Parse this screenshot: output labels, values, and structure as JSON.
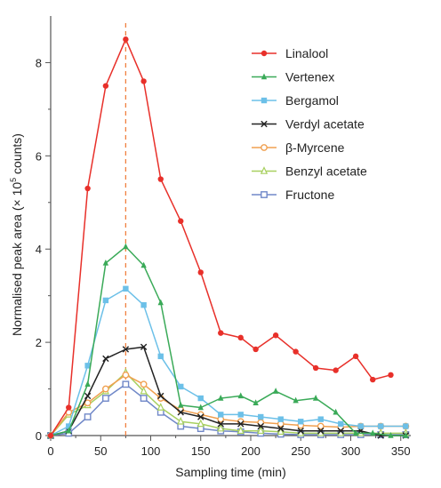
{
  "chart_data": {
    "type": "line",
    "xlabel": "Sampling time (min)",
    "ylabel_parts": [
      "Normalised peak area (× 10",
      "5",
      " counts)"
    ],
    "xlim": [
      0,
      360
    ],
    "ylim": [
      0,
      9
    ],
    "xticks": [
      0,
      50,
      100,
      150,
      200,
      250,
      300,
      350
    ],
    "yticks": [
      0,
      2,
      4,
      6,
      8
    ],
    "x_minor_ticks": [
      25,
      75,
      125,
      175,
      225,
      275,
      325
    ],
    "y_minor_ticks": [
      1,
      3,
      5,
      7
    ],
    "grid": false,
    "legend_position": "top-right",
    "reference_line": {
      "x": 75,
      "color": "#f08040",
      "style": "dashed"
    },
    "series": [
      {
        "name": "Linalool",
        "color": "#e8302a",
        "marker": "circle",
        "x": [
          0,
          18,
          37,
          55,
          75,
          93,
          110,
          130,
          150,
          170,
          190,
          205,
          225,
          245,
          265,
          285,
          305,
          322,
          340
        ],
        "y": [
          0,
          0.6,
          5.3,
          7.5,
          8.5,
          7.6,
          5.5,
          4.6,
          3.5,
          2.2,
          2.1,
          1.85,
          2.15,
          1.8,
          1.45,
          1.4,
          1.7,
          1.2,
          1.3
        ]
      },
      {
        "name": "Vertenex",
        "color": "#3aaa58",
        "marker": "triangle",
        "x": [
          0,
          18,
          37,
          55,
          75,
          93,
          110,
          130,
          150,
          170,
          190,
          205,
          225,
          245,
          265,
          285,
          305,
          322,
          340,
          355
        ],
        "y": [
          0,
          0.1,
          1.1,
          3.7,
          4.05,
          3.65,
          2.85,
          0.65,
          0.6,
          0.8,
          0.85,
          0.7,
          0.95,
          0.75,
          0.8,
          0.5,
          0.05,
          0.05,
          0,
          0
        ]
      },
      {
        "name": "Bergamol",
        "color": "#6cc0e8",
        "marker": "square",
        "x": [
          0,
          18,
          37,
          55,
          75,
          93,
          110,
          130,
          150,
          170,
          190,
          210,
          230,
          250,
          270,
          290,
          310,
          330,
          355
        ],
        "y": [
          0,
          0.2,
          1.5,
          2.9,
          3.15,
          2.8,
          1.7,
          1.05,
          0.8,
          0.45,
          0.45,
          0.4,
          0.35,
          0.3,
          0.35,
          0.25,
          0.2,
          0.2,
          0.2
        ]
      },
      {
        "name": "Verdyl acetate",
        "color": "#222222",
        "marker": "cross",
        "x": [
          0,
          18,
          37,
          55,
          75,
          93,
          110,
          130,
          150,
          170,
          190,
          210,
          230,
          250,
          270,
          290,
          310,
          330,
          355
        ],
        "y": [
          0,
          0.1,
          0.85,
          1.65,
          1.85,
          1.9,
          0.85,
          0.5,
          0.4,
          0.25,
          0.25,
          0.2,
          0.15,
          0.1,
          0.1,
          0.1,
          0.1,
          0,
          0
        ]
      },
      {
        "name": "β-Myrcene",
        "color": "#f0a050",
        "marker": "circle-open",
        "x": [
          0,
          18,
          37,
          55,
          75,
          93,
          110,
          130,
          150,
          170,
          190,
          210,
          230,
          250,
          270,
          290,
          310,
          330,
          355
        ],
        "y": [
          0,
          0.5,
          0.7,
          1.0,
          1.3,
          1.1,
          0.8,
          0.55,
          0.45,
          0.35,
          0.3,
          0.28,
          0.25,
          0.22,
          0.2,
          0.18,
          0.2,
          0.2,
          0.2
        ]
      },
      {
        "name": "Benzyl acetate",
        "color": "#a8d060",
        "marker": "triangle-open",
        "x": [
          0,
          18,
          37,
          55,
          75,
          93,
          110,
          130,
          150,
          170,
          190,
          210,
          230,
          250,
          270,
          290,
          310,
          330,
          355
        ],
        "y": [
          0,
          0.45,
          0.65,
          0.95,
          1.35,
          0.95,
          0.6,
          0.3,
          0.25,
          0.15,
          0.1,
          0.1,
          0.08,
          0.05,
          0.05,
          0.05,
          0.05,
          0.05,
          0.05
        ]
      },
      {
        "name": "Fructone",
        "color": "#7088c8",
        "marker": "square-open",
        "x": [
          0,
          18,
          37,
          55,
          75,
          93,
          110,
          130,
          150,
          170,
          190,
          210,
          230,
          250,
          270,
          290,
          310,
          330,
          355
        ],
        "y": [
          0,
          0.05,
          0.4,
          0.8,
          1.1,
          0.8,
          0.5,
          0.2,
          0.15,
          0.1,
          0.08,
          0.05,
          0.03,
          0.02,
          0.02,
          0.02,
          0.02,
          0.02,
          0.02
        ]
      }
    ]
  }
}
